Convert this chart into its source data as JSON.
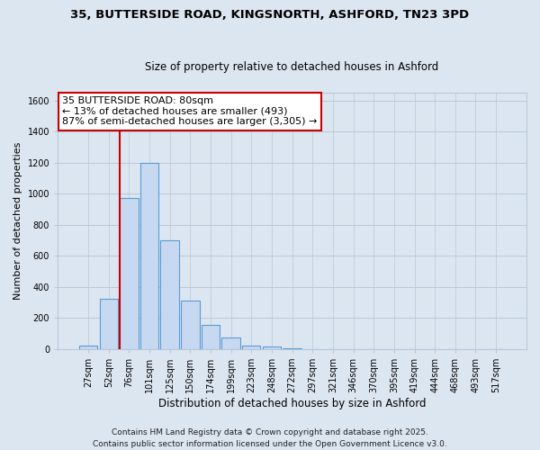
{
  "title": "35, BUTTERSIDE ROAD, KINGSNORTH, ASHFORD, TN23 3PD",
  "subtitle": "Size of property relative to detached houses in Ashford",
  "xlabel": "Distribution of detached houses by size in Ashford",
  "ylabel": "Number of detached properties",
  "categories": [
    "27sqm",
    "52sqm",
    "76sqm",
    "101sqm",
    "125sqm",
    "150sqm",
    "174sqm",
    "199sqm",
    "223sqm",
    "248sqm",
    "272sqm",
    "297sqm",
    "321sqm",
    "346sqm",
    "370sqm",
    "395sqm",
    "419sqm",
    "444sqm",
    "468sqm",
    "493sqm",
    "517sqm"
  ],
  "values": [
    25,
    325,
    975,
    1200,
    700,
    310,
    155,
    75,
    25,
    15,
    5,
    2,
    1,
    0,
    0,
    0,
    0,
    0,
    0,
    0,
    2
  ],
  "bar_color": "#c6d9f0",
  "bar_edge_color": "#5b9bd5",
  "vline_color": "#cc0000",
  "ylim": [
    0,
    1650
  ],
  "yticks": [
    0,
    200,
    400,
    600,
    800,
    1000,
    1200,
    1400,
    1600
  ],
  "annotation_title": "35 BUTTERSIDE ROAD: 80sqm",
  "annotation_line1": "← 13% of detached houses are smaller (493)",
  "annotation_line2": "87% of semi-detached houses are larger (3,305) →",
  "annotation_box_facecolor": "white",
  "annotation_box_edgecolor": "#cc0000",
  "footer1": "Contains HM Land Registry data © Crown copyright and database right 2025.",
  "footer2": "Contains public sector information licensed under the Open Government Licence v3.0.",
  "bg_color": "#dce6f1",
  "plot_bg_color": "#dce6f1",
  "grid_color": "#b8c8d8",
  "title_fontsize": 9.5,
  "subtitle_fontsize": 8.5,
  "ylabel_fontsize": 8,
  "xlabel_fontsize": 8.5,
  "tick_fontsize": 7,
  "annot_fontsize": 8,
  "footer_fontsize": 6.5
}
